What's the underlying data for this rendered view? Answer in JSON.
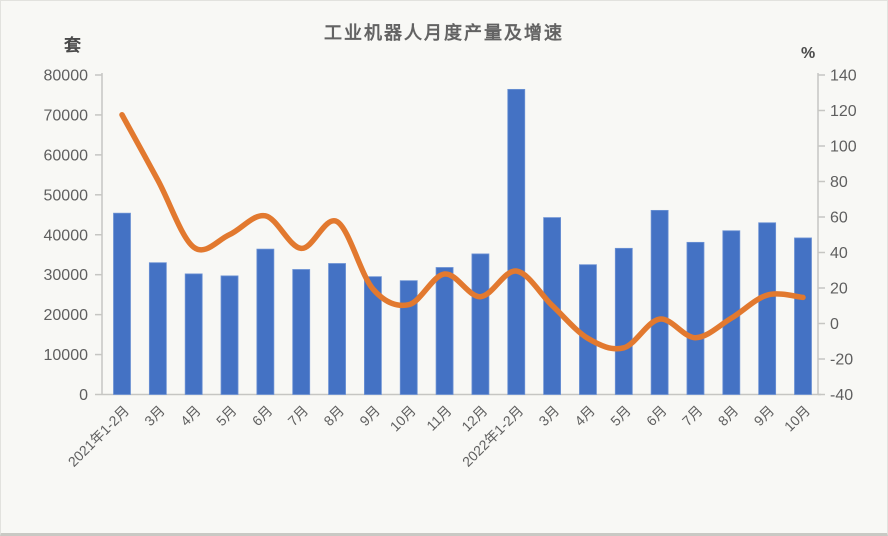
{
  "chart_data": {
    "type": "combo-bar-line",
    "title": "工业机器人月度产量及增速",
    "categories": [
      "2021年1-2月",
      "3月",
      "4月",
      "5月",
      "6月",
      "7月",
      "8月",
      "9月",
      "10月",
      "11月",
      "12月",
      "2022年1-2月",
      "3月",
      "4月",
      "5月",
      "6月",
      "7月",
      "8月",
      "9月",
      "10月"
    ],
    "series": [
      {
        "name": "月度产量",
        "type": "bar",
        "axis": "left",
        "unit": "套",
        "color": "#4472C4",
        "values": [
          45400,
          33000,
          30200,
          29700,
          36400,
          31300,
          32800,
          29500,
          28500,
          31800,
          35200,
          76400,
          44300,
          32500,
          36600,
          46100,
          38100,
          41000,
          43000,
          39200
        ]
      },
      {
        "name": "增速",
        "type": "line",
        "axis": "right",
        "unit": "%",
        "color": "#E2792F",
        "values": [
          117.6,
          80.8,
          43,
          50.1,
          60.7,
          42.3,
          57.4,
          19.5,
          10.6,
          27.9,
          15.1,
          29.6,
          10.2,
          -8.4,
          -13.7,
          2.5,
          -8,
          3,
          16,
          14.7
        ]
      }
    ],
    "left_axis": {
      "label": "套",
      "min": 0,
      "max": 80000,
      "step": 10000,
      "tick_labels": [
        "0",
        "10000",
        "20000",
        "30000",
        "40000",
        "50000",
        "60000",
        "70000",
        "80000"
      ]
    },
    "right_axis": {
      "label": "%",
      "min": -40,
      "max": 140,
      "step": 20,
      "tick_labels": [
        "-40",
        "-20",
        "0",
        "20",
        "40",
        "60",
        "80",
        "100",
        "120",
        "140"
      ]
    },
    "legend_position": "none",
    "grid": false,
    "x_label_rotation": -45
  },
  "colors": {
    "bar": "#4472C4",
    "bar_edge": "#6E93D4",
    "line": "#E2792F",
    "axis_text": "#5f5f5f",
    "axis_line": "#c6c6c3",
    "background": "#f8f8f5"
  }
}
